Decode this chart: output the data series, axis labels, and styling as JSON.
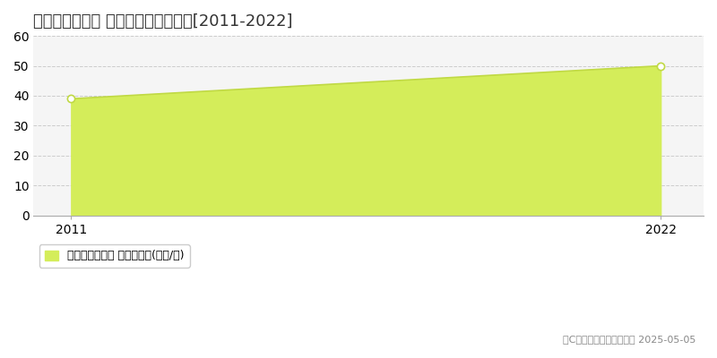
{
  "title": "諫早市西小路町 マンション価格推移[2011-2022]",
  "years": [
    2011,
    2022
  ],
  "values": [
    39,
    50
  ],
  "xlim": [
    2010.3,
    2022.8
  ],
  "ylim": [
    0,
    60
  ],
  "yticks": [
    0,
    10,
    20,
    30,
    40,
    50,
    60
  ],
  "xticks": [
    2011,
    2022
  ],
  "fill_color": "#d4ed5a",
  "line_color": "#c0d944",
  "marker_color": "#c0d944",
  "grid_color": "#cccccc",
  "background_color": "#f0f0f0",
  "plot_bg_color": "#f5f5f5",
  "legend_label": "マンション価格 平均坪単価(万円/坪)",
  "legend_square_color": "#d4ed5a",
  "copyright_text": "（C）土地価格ドットコム 2025-05-05",
  "title_fontsize": 13,
  "axis_fontsize": 10,
  "legend_fontsize": 9,
  "copyright_fontsize": 8
}
